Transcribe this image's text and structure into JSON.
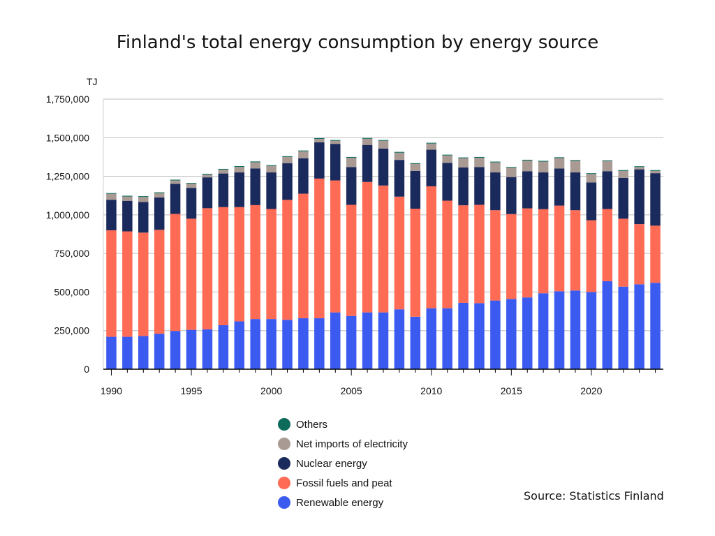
{
  "chart_data": {
    "type": "bar",
    "stacked": true,
    "title": "Finland's total energy consumption by energy source",
    "ylabel": "TJ",
    "xlabel": "",
    "ylim": [
      0,
      1750000
    ],
    "yticks": [
      0,
      250000,
      500000,
      750000,
      1000000,
      1250000,
      1500000,
      1750000
    ],
    "ytick_labels": [
      "0",
      "250,000",
      "500,000",
      "750,000",
      "1,000,000",
      "1,250,000",
      "1,500,000",
      "1,750,000"
    ],
    "xtick_labels": [
      "1990",
      "1995",
      "2000",
      "2005",
      "2010",
      "2015",
      "2020"
    ],
    "grid": "horizontal",
    "legend_position": "bottom-center",
    "categories": [
      1990,
      1991,
      1992,
      1993,
      1994,
      1995,
      1996,
      1997,
      1998,
      1999,
      2000,
      2001,
      2002,
      2003,
      2004,
      2005,
      2006,
      2007,
      2008,
      2009,
      2010,
      2011,
      2012,
      2013,
      2014,
      2015,
      2016,
      2017,
      2018,
      2019,
      2020,
      2021,
      2022,
      2023,
      2024
    ],
    "series": [
      {
        "name": "Renewable energy",
        "color": "#3b5bf0",
        "values": [
          210000,
          210000,
          215000,
          230000,
          248000,
          255000,
          258000,
          285000,
          310000,
          325000,
          325000,
          320000,
          330000,
          330000,
          368000,
          345000,
          368000,
          368000,
          388000,
          340000,
          395000,
          395000,
          430000,
          428000,
          445000,
          455000,
          465000,
          492000,
          505000,
          510000,
          500000,
          570000,
          535000,
          550000,
          560000
        ]
      },
      {
        "name": "Fossil fuels and peat",
        "color": "#ff6b55",
        "values": [
          690000,
          683000,
          670000,
          673000,
          758000,
          720000,
          785000,
          765000,
          740000,
          738000,
          713000,
          777000,
          807000,
          905000,
          855000,
          720000,
          845000,
          822000,
          730000,
          700000,
          790000,
          697000,
          632000,
          637000,
          585000,
          550000,
          577000,
          545000,
          555000,
          520000,
          465000,
          468000,
          440000,
          390000,
          370000
        ]
      },
      {
        "name": "Nuclear energy",
        "color": "#1b2a5c",
        "values": [
          198000,
          198000,
          198000,
          210000,
          195000,
          200000,
          200000,
          218000,
          225000,
          238000,
          237000,
          238000,
          230000,
          235000,
          237000,
          245000,
          240000,
          240000,
          238000,
          245000,
          237000,
          245000,
          245000,
          245000,
          245000,
          240000,
          240000,
          238000,
          240000,
          245000,
          245000,
          245000,
          265000,
          355000,
          340000
        ]
      },
      {
        "name": "Net imports of electricity",
        "color": "#a99a94",
        "values": [
          38000,
          28000,
          33000,
          28000,
          22000,
          27000,
          18000,
          25000,
          36000,
          40000,
          42000,
          40000,
          45000,
          22000,
          20000,
          60000,
          40000,
          50000,
          47000,
          45000,
          40000,
          48000,
          60000,
          60000,
          65000,
          60000,
          70000,
          70000,
          68000,
          75000,
          55000,
          65000,
          45000,
          15000,
          15000
        ]
      },
      {
        "name": "Others",
        "color": "#0e6b5c",
        "values": [
          5000,
          5000,
          5000,
          5000,
          5000,
          5000,
          5000,
          5000,
          5000,
          5000,
          5000,
          5000,
          5000,
          5000,
          5000,
          5000,
          5000,
          5000,
          5000,
          5000,
          5000,
          5000,
          5000,
          5000,
          5000,
          5000,
          5000,
          5000,
          5000,
          5000,
          5000,
          5000,
          5000,
          5000,
          5000
        ]
      }
    ],
    "source": "Source: Statistics Finland"
  }
}
